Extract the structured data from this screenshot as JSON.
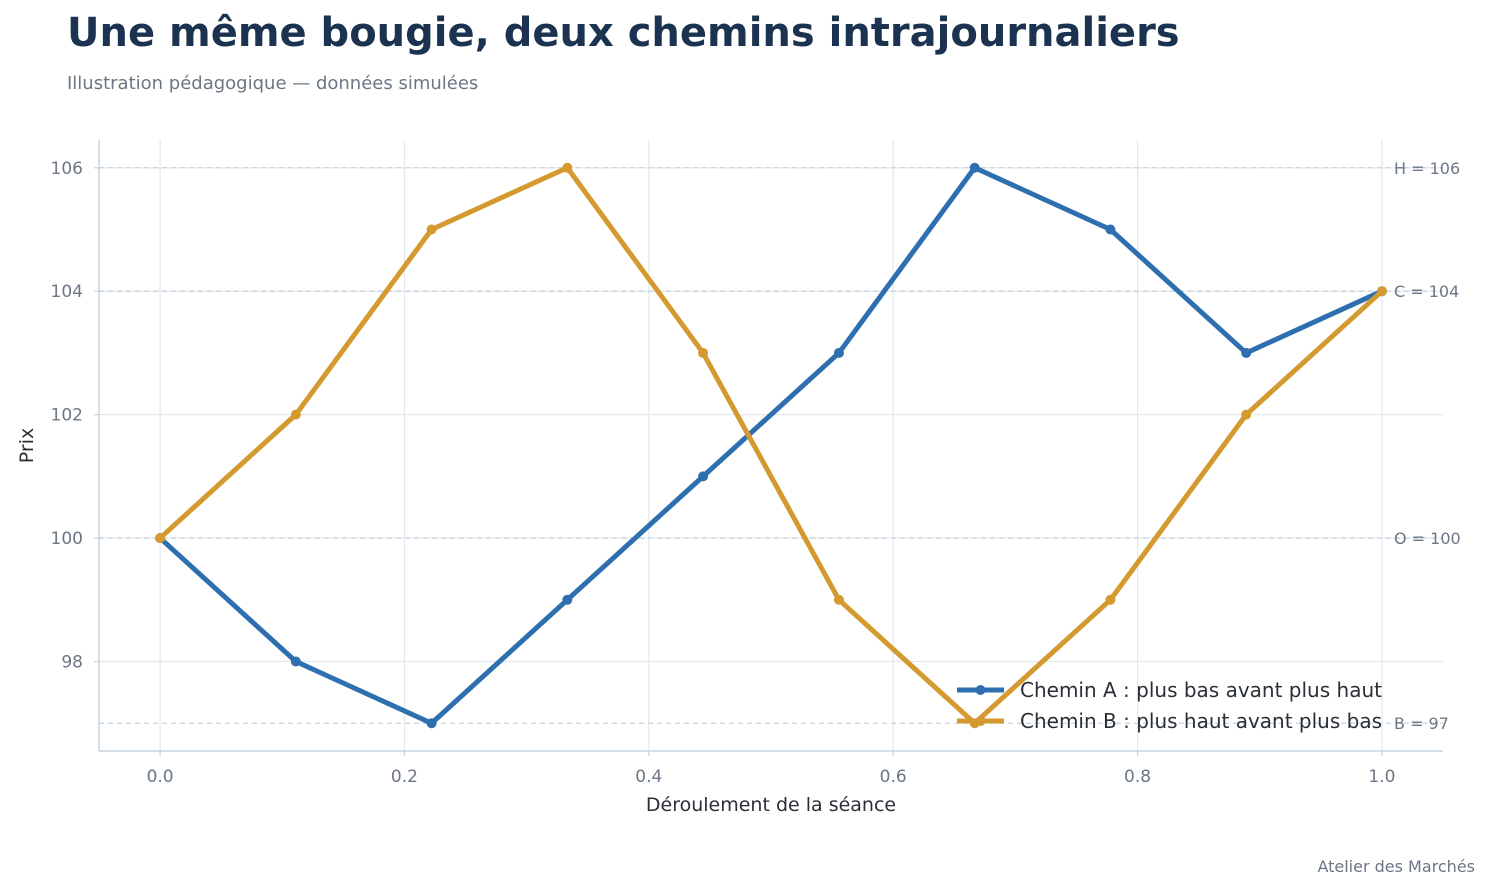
{
  "title": "Une même bougie, deux chemins intrajournaliers",
  "subtitle": "Illustration pédagogique — données simulées",
  "credit": "Atelier des Marchés",
  "chart_data": {
    "type": "line",
    "xlabel": "Déroulement de la séance",
    "ylabel": "Prix",
    "xlim": [
      -0.05,
      1.05
    ],
    "ylim": [
      96.55,
      106.45
    ],
    "x_ticks": [
      0.0,
      0.2,
      0.4,
      0.6,
      0.8,
      1.0
    ],
    "x_tick_labels": [
      "0.0",
      "0.2",
      "0.4",
      "0.6",
      "0.8",
      "1.0"
    ],
    "y_ticks": [
      98,
      100,
      102,
      104,
      106
    ],
    "y_tick_labels": [
      "98",
      "100",
      "102",
      "104",
      "106"
    ],
    "grid": true,
    "legend_position": "bottom-right",
    "x": [
      0.0,
      0.1111,
      0.2222,
      0.3333,
      0.4444,
      0.5556,
      0.6667,
      0.7778,
      0.8889,
      1.0
    ],
    "series": [
      {
        "name": "Chemin A : plus bas avant plus haut",
        "color": "#2e6fb0",
        "values": [
          100,
          98,
          97,
          99,
          101,
          103,
          106,
          105,
          103,
          104
        ]
      },
      {
        "name": "Chemin B : plus haut avant plus bas",
        "color": "#d49a2f",
        "values": [
          100,
          102,
          105,
          106,
          103,
          99,
          97,
          99,
          102,
          104
        ]
      }
    ],
    "reference_lines": [
      {
        "value": 106,
        "label": "H = 106"
      },
      {
        "value": 104,
        "label": "C = 104"
      },
      {
        "value": 100,
        "label": "O = 100"
      },
      {
        "value": 97,
        "label": "B = 97"
      }
    ]
  }
}
